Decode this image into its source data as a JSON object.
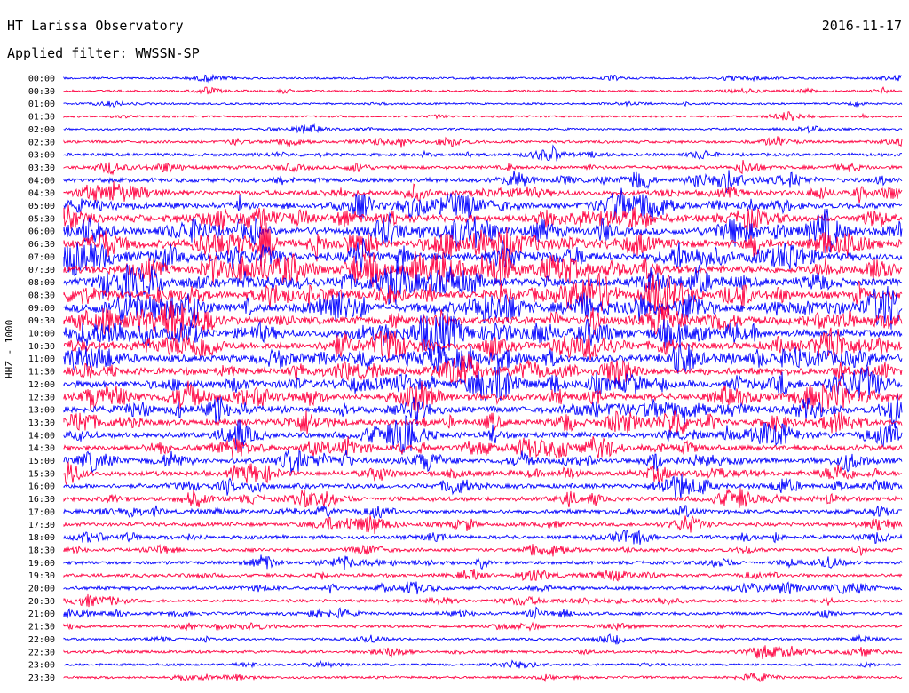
{
  "header": {
    "station": "HT Larissa Observatory",
    "date": "2016-11-17",
    "filter": "Applied filter: WWSSN-SP"
  },
  "chart_data": {
    "type": "line",
    "ylabel": "HHZ - 1000",
    "xlabel": "",
    "colors": [
      "#0000ff",
      "#ff0040"
    ],
    "row_minutes": 30,
    "rows": [
      {
        "label": "00:00",
        "activity": 0.15
      },
      {
        "label": "00:30",
        "activity": 0.15
      },
      {
        "label": "01:00",
        "activity": 0.12
      },
      {
        "label": "01:30",
        "activity": 0.12
      },
      {
        "label": "02:00",
        "activity": 0.15
      },
      {
        "label": "02:30",
        "activity": 0.25
      },
      {
        "label": "03:00",
        "activity": 0.3
      },
      {
        "label": "03:30",
        "activity": 0.35
      },
      {
        "label": "04:00",
        "activity": 0.5
      },
      {
        "label": "04:30",
        "activity": 0.6
      },
      {
        "label": "05:00",
        "activity": 0.75
      },
      {
        "label": "05:30",
        "activity": 0.9
      },
      {
        "label": "06:00",
        "activity": 0.95
      },
      {
        "label": "06:30",
        "activity": 1.0
      },
      {
        "label": "07:00",
        "activity": 1.0
      },
      {
        "label": "07:30",
        "activity": 1.0
      },
      {
        "label": "08:00",
        "activity": 1.0
      },
      {
        "label": "08:30",
        "activity": 1.0
      },
      {
        "label": "09:00",
        "activity": 1.0
      },
      {
        "label": "09:30",
        "activity": 0.95
      },
      {
        "label": "10:00",
        "activity": 0.95
      },
      {
        "label": "10:30",
        "activity": 0.9
      },
      {
        "label": "11:00",
        "activity": 0.9
      },
      {
        "label": "11:30",
        "activity": 0.85
      },
      {
        "label": "12:00",
        "activity": 0.85
      },
      {
        "label": "12:30",
        "activity": 0.85
      },
      {
        "label": "13:00",
        "activity": 0.8
      },
      {
        "label": "13:30",
        "activity": 0.75
      },
      {
        "label": "14:00",
        "activity": 0.7
      },
      {
        "label": "14:30",
        "activity": 0.65
      },
      {
        "label": "15:00",
        "activity": 0.65
      },
      {
        "label": "15:30",
        "activity": 0.6
      },
      {
        "label": "16:00",
        "activity": 0.55
      },
      {
        "label": "16:30",
        "activity": 0.5
      },
      {
        "label": "17:00",
        "activity": 0.45
      },
      {
        "label": "17:30",
        "activity": 0.4
      },
      {
        "label": "18:00",
        "activity": 0.4
      },
      {
        "label": "18:30",
        "activity": 0.35
      },
      {
        "label": "19:00",
        "activity": 0.35
      },
      {
        "label": "19:30",
        "activity": 0.35
      },
      {
        "label": "20:00",
        "activity": 0.35
      },
      {
        "label": "20:30",
        "activity": 0.3
      },
      {
        "label": "21:00",
        "activity": 0.3
      },
      {
        "label": "21:30",
        "activity": 0.25
      },
      {
        "label": "22:00",
        "activity": 0.2
      },
      {
        "label": "22:30",
        "activity": 0.25
      },
      {
        "label": "23:00",
        "activity": 0.2
      },
      {
        "label": "23:30",
        "activity": 0.2
      }
    ]
  }
}
